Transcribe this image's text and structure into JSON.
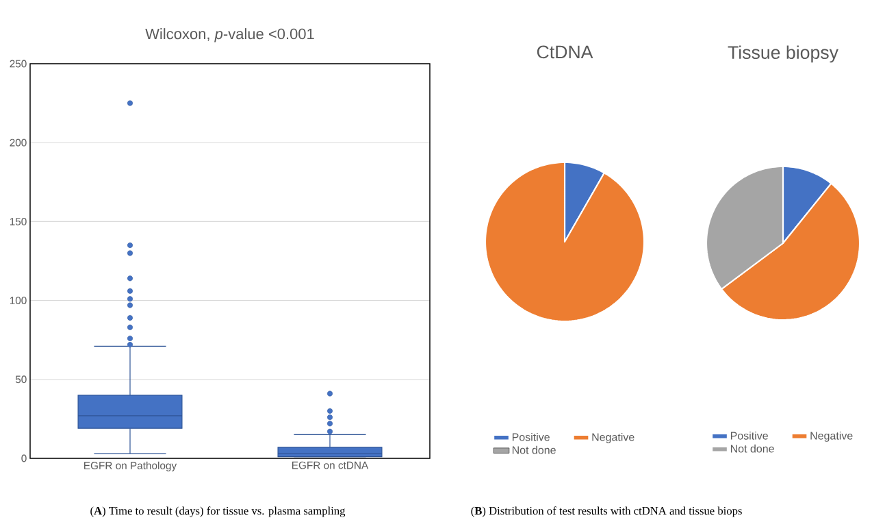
{
  "chart_data": [
    {
      "type": "box",
      "title": "Wilcoxon, *p*-value <0.001",
      "categories": [
        "EGFR on Pathology",
        "EGFR on ctDNA"
      ],
      "color": "#4472c4",
      "boxes": [
        {
          "low": 3,
          "q1": 19,
          "median": 27,
          "q3": 40,
          "high": 71,
          "outliers": [
            72,
            76,
            83,
            89,
            97,
            101,
            106,
            114,
            130,
            135,
            225
          ]
        },
        {
          "low": 1,
          "q1": 1,
          "median": 3,
          "q3": 7,
          "high": 15,
          "outliers": [
            17,
            22,
            26,
            30,
            41
          ]
        }
      ],
      "ylim": [
        0,
        250
      ],
      "yticks": [
        0,
        50,
        100,
        150,
        200,
        250
      ],
      "grid": "y",
      "annotations": [
        "(**A**) Time to result (days) for tissue vs. plasma sampling"
      ]
    },
    {
      "type": "pie",
      "title": "CtDNA",
      "categories": [
        "Positive",
        "Negative",
        "Not done"
      ],
      "values": [
        8.3,
        91.7,
        0
      ],
      "colors": [
        "#4472c4",
        "#ed7d31",
        "#a5a5a5"
      ],
      "legend": "bottom",
      "annotations": [
        "(**B**) Distribution of test results with ctDNA and tissue biops"
      ]
    },
    {
      "type": "pie",
      "title": "Tissue biopsy",
      "categories": [
        "Positive",
        "Negative",
        "Not done"
      ],
      "values": [
        10.8,
        54,
        35.2
      ],
      "colors": [
        "#4472c4",
        "#ed7d31",
        "#a5a5a5"
      ],
      "legend": "bottom"
    }
  ]
}
